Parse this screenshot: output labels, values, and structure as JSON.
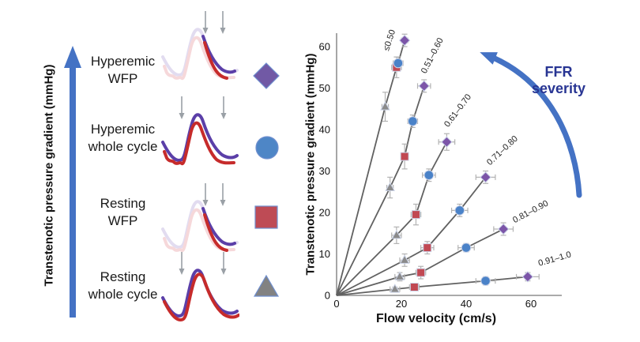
{
  "left_panel": {
    "axis_label": "Transtenotic pressure gradient (mmHg)",
    "arrow_color": "#4472c4",
    "rows": [
      {
        "lines": [
          "Hyperemic",
          "WFP"
        ],
        "marker": "diamond",
        "marker_color": "#7159a5",
        "waveform": "wfp"
      },
      {
        "lines": [
          "Hyperemic",
          "whole cycle"
        ],
        "marker": "circle",
        "marker_color": "#4e86c6",
        "waveform": "whole"
      },
      {
        "lines": [
          "Resting",
          "WFP"
        ],
        "marker": "square",
        "marker_color": "#be4b55",
        "waveform": "wfp"
      },
      {
        "lines": [
          "Resting",
          "whole cycle"
        ],
        "marker": "triangle",
        "marker_color": "#828282",
        "waveform": "whole"
      }
    ],
    "waveform_colors": {
      "proximal": "#5b3fa8",
      "distal": "#c62b2b",
      "faded_proximal": "#e2dcf0",
      "faded_distal": "#f6d8da",
      "arrow": "#9aa0a6"
    }
  },
  "chart_data": {
    "type": "scatter",
    "xlabel": "Flow velocity (cm/s)",
    "ylabel": "Transtenotic pressure gradient (mmHg)",
    "xlim": [
      0,
      70
    ],
    "ylim": [
      0,
      63
    ],
    "x_ticks": [
      0,
      20,
      40,
      60
    ],
    "y_ticks": [
      0,
      10,
      20,
      30,
      40,
      50,
      60
    ],
    "grid": false,
    "error_bars": true,
    "line_color": "#616161",
    "error_bar_color": "#b3b3b3",
    "marker_styles": {
      "triangle": {
        "color": "#8a8a8a",
        "meaning": "Resting whole cycle"
      },
      "square": {
        "color": "#c14953",
        "meaning": "Resting WFP"
      },
      "circle": {
        "color": "#4a82c8",
        "meaning": "Hyperemic whole cycle"
      },
      "diamond": {
        "color": "#7c55a8",
        "meaning": "Hyperemic WFP"
      }
    },
    "series": [
      {
        "name": "≤0.50",
        "points": [
          {
            "marker": "triangle",
            "x": 15,
            "y": 45.5,
            "xe": 1,
            "ye": 3.5
          },
          {
            "marker": "square",
            "x": 18.5,
            "y": 55,
            "xe": 1.5,
            "ye": 2.5
          },
          {
            "marker": "circle",
            "x": 19,
            "y": 56,
            "xe": 1.5,
            "ye": 1.5
          },
          {
            "marker": "diamond",
            "x": 21,
            "y": 61.5,
            "xe": 1,
            "ye": 1.5
          }
        ]
      },
      {
        "name": "0.51–0.60",
        "points": [
          {
            "marker": "triangle",
            "x": 16.5,
            "y": 26,
            "xe": 1,
            "ye": 2.5
          },
          {
            "marker": "square",
            "x": 21,
            "y": 33.5,
            "xe": 1,
            "ye": 3
          },
          {
            "marker": "circle",
            "x": 23.5,
            "y": 42,
            "xe": 1.5,
            "ye": 1.5
          },
          {
            "marker": "diamond",
            "x": 27,
            "y": 50.5,
            "xe": 2,
            "ye": 1.5
          }
        ]
      },
      {
        "name": "0.61–0.70",
        "points": [
          {
            "marker": "triangle",
            "x": 18.5,
            "y": 14.5,
            "xe": 1.5,
            "ye": 2
          },
          {
            "marker": "square",
            "x": 24.5,
            "y": 19.5,
            "xe": 1.5,
            "ye": 2.5
          },
          {
            "marker": "circle",
            "x": 28.5,
            "y": 29,
            "xe": 2,
            "ye": 1.5
          },
          {
            "marker": "diamond",
            "x": 34,
            "y": 37,
            "xe": 2.5,
            "ye": 2
          }
        ]
      },
      {
        "name": "0.71–0.80",
        "points": [
          {
            "marker": "triangle",
            "x": 21,
            "y": 8.5,
            "xe": 1.5,
            "ye": 1.5
          },
          {
            "marker": "square",
            "x": 28,
            "y": 11.5,
            "xe": 2,
            "ye": 1.5
          },
          {
            "marker": "circle",
            "x": 38,
            "y": 20.5,
            "xe": 2.5,
            "ye": 1.5
          },
          {
            "marker": "diamond",
            "x": 46,
            "y": 28.5,
            "xe": 3,
            "ye": 1.5
          }
        ]
      },
      {
        "name": "0.81–0.90",
        "points": [
          {
            "marker": "triangle",
            "x": 19.5,
            "y": 4.5,
            "xe": 1.5,
            "ye": 1
          },
          {
            "marker": "square",
            "x": 26,
            "y": 5.5,
            "xe": 1.5,
            "ye": 1.5
          },
          {
            "marker": "circle",
            "x": 40,
            "y": 11.5,
            "xe": 2.5,
            "ye": 1
          },
          {
            "marker": "diamond",
            "x": 51.5,
            "y": 16,
            "xe": 3,
            "ye": 1.5
          }
        ]
      },
      {
        "name": "0.91–1.0",
        "points": [
          {
            "marker": "triangle",
            "x": 18,
            "y": 1.5,
            "xe": 1.5,
            "ye": 0.5
          },
          {
            "marker": "square",
            "x": 24,
            "y": 2,
            "xe": 1.5,
            "ye": 0.5
          },
          {
            "marker": "circle",
            "x": 46,
            "y": 3.5,
            "xe": 3,
            "ye": 1
          },
          {
            "marker": "diamond",
            "x": 59,
            "y": 4.5,
            "xe": 3.5,
            "ye": 1
          }
        ]
      }
    ],
    "annotation": {
      "lines": [
        "FFR",
        "severity"
      ],
      "color": "#283593",
      "arrow_color": "#4472c4"
    }
  }
}
